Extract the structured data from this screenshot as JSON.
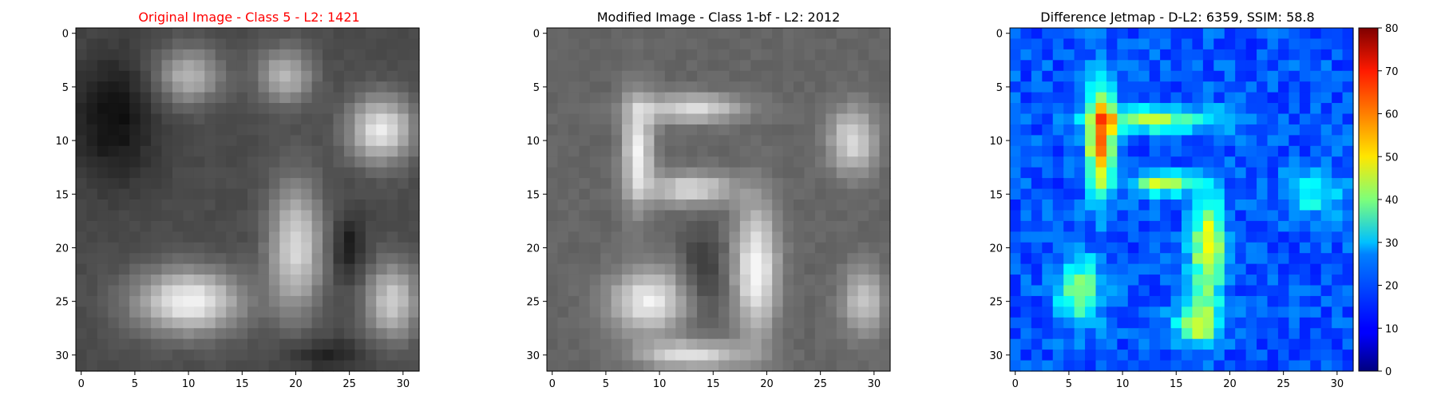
{
  "figure": {
    "background": "#ffffff"
  },
  "chart_data": [
    {
      "type": "heatmap",
      "title": "Original Image - Class 5 - L2: 1421",
      "title_color": "#ff0000",
      "colormap": "gray",
      "grid": false,
      "xlim": [
        -0.5,
        31.5
      ],
      "ylim": [
        31.5,
        -0.5
      ],
      "xticks": [
        0,
        5,
        10,
        15,
        20,
        25,
        30
      ],
      "yticks": [
        0,
        5,
        10,
        15,
        20,
        25,
        30
      ],
      "xtick_labels": [
        "0",
        "5",
        "10",
        "15",
        "20",
        "25",
        "30"
      ],
      "ytick_labels": [
        "0",
        "5",
        "10",
        "15",
        "20",
        "25",
        "30"
      ],
      "xlabel": "",
      "ylabel": ""
    },
    {
      "type": "heatmap",
      "title": "Modified Image - Class 1-bf - L2: 2012",
      "title_color": "#000000",
      "colormap": "gray",
      "grid": false,
      "xlim": [
        -0.5,
        31.5
      ],
      "ylim": [
        31.5,
        -0.5
      ],
      "xticks": [
        0,
        5,
        10,
        15,
        20,
        25,
        30
      ],
      "yticks": [
        0,
        5,
        10,
        15,
        20,
        25,
        30
      ],
      "xtick_labels": [
        "0",
        "5",
        "10",
        "15",
        "20",
        "25",
        "30"
      ],
      "ytick_labels": [
        "0",
        "5",
        "10",
        "15",
        "20",
        "25",
        "30"
      ],
      "xlabel": "",
      "ylabel": ""
    },
    {
      "type": "heatmap",
      "title": "Difference Jetmap - D-L2: 6359, SSIM: 58.8",
      "title_color": "#000000",
      "colormap": "jet",
      "grid": false,
      "xlim": [
        -0.5,
        31.5
      ],
      "ylim": [
        31.5,
        -0.5
      ],
      "xticks": [
        0,
        5,
        10,
        15,
        20,
        25,
        30
      ],
      "yticks": [
        0,
        5,
        10,
        15,
        20,
        25,
        30
      ],
      "xtick_labels": [
        "0",
        "5",
        "10",
        "15",
        "20",
        "25",
        "30"
      ],
      "ytick_labels": [
        "0",
        "5",
        "10",
        "15",
        "20",
        "25",
        "30"
      ],
      "xlabel": "",
      "ylabel": "",
      "colorbar": {
        "range": [
          0,
          80
        ],
        "ticks": [
          0,
          10,
          20,
          30,
          40,
          50,
          60,
          70,
          80
        ],
        "tick_labels": [
          "0",
          "10",
          "20",
          "30",
          "40",
          "50",
          "60",
          "70",
          "80"
        ],
        "placement": "right"
      }
    }
  ]
}
